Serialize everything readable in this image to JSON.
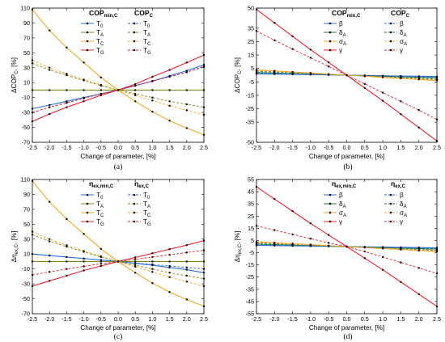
{
  "colors": {
    "blue": "#2a6fdb",
    "olive": "#7f8a1a",
    "orange": "#f5a623",
    "red": "#e8202a",
    "darkgreen": "#1c7a3a",
    "black": "#000000"
  },
  "chart_data": [
    {
      "panel": "(a)",
      "type": "line",
      "ylabel_main": "ΔCOP",
      "ylabel_sub": "C",
      "ylabel_unit": ", [%]",
      "xlabel": "Change of parameter, [%]",
      "xlim": [
        -2.5,
        2.5
      ],
      "ylim": [
        -70,
        110
      ],
      "xticks": [
        -2.5,
        -2.0,
        -1.5,
        -1.0,
        -0.5,
        0.0,
        0.5,
        1.0,
        1.5,
        2.0,
        2.5
      ],
      "yticks": [
        -70,
        -50,
        -30,
        -10,
        10,
        30,
        50,
        70,
        90,
        110
      ],
      "legend_headers": [
        {
          "main": "COP",
          "sub": "min,C"
        },
        {
          "main": "COP",
          "sub": "C"
        }
      ],
      "x": [
        -2.5,
        -2.0,
        -1.5,
        -1.0,
        -0.5,
        0.0,
        0.5,
        1.0,
        1.5,
        2.0,
        2.5
      ],
      "series": [
        {
          "name": "T",
          "sub": "0",
          "group": "min",
          "color": "blue",
          "dash": false,
          "values": [
            -25,
            -20,
            -15,
            -10,
            -5,
            0,
            6,
            12,
            19,
            26,
            34
          ]
        },
        {
          "name": "T",
          "sub": "A",
          "group": "min",
          "color": "olive",
          "dash": false,
          "values": [
            0,
            0,
            0,
            0,
            0,
            0,
            0,
            0,
            0,
            0,
            0
          ]
        },
        {
          "name": "T",
          "sub": "C",
          "group": "min",
          "color": "orange",
          "dash": false,
          "values": [
            108,
            80,
            57,
            37,
            17,
            0,
            -15,
            -29,
            -41,
            -51,
            -60
          ]
        },
        {
          "name": "T",
          "sub": "G",
          "group": "min",
          "color": "red",
          "dash": false,
          "values": [
            -42,
            -32,
            -23,
            -15,
            -7,
            0,
            8,
            18,
            27,
            37,
            47
          ]
        },
        {
          "name": "T",
          "sub": "0",
          "group": "c",
          "color": "blue",
          "dash": true,
          "values": [
            -30,
            -23,
            -17,
            -11,
            -5,
            0,
            6,
            12,
            18,
            24,
            31
          ]
        },
        {
          "name": "T",
          "sub": "A",
          "group": "c",
          "color": "olive",
          "dash": true,
          "values": [
            36,
            27,
            20,
            13,
            6,
            0,
            -5,
            -10,
            -15,
            -19,
            -23
          ]
        },
        {
          "name": "T",
          "sub": "C",
          "group": "c",
          "color": "orange",
          "dash": true,
          "values": [
            40,
            30,
            22,
            14,
            7,
            0,
            -7,
            -14,
            -21,
            -27,
            -33
          ]
        },
        {
          "name": "T",
          "sub": "G",
          "group": "c",
          "color": "red",
          "dash": true,
          "values": [
            -30,
            -23,
            -17,
            -11,
            -5,
            0,
            6,
            12,
            18,
            24,
            32
          ]
        }
      ]
    },
    {
      "panel": "(b)",
      "type": "line",
      "ylabel_main": "ΔCOP",
      "ylabel_sub": "C",
      "ylabel_unit": ", [%]",
      "xlabel": "Change of parameter, [%]",
      "xlim": [
        -2.5,
        2.5
      ],
      "ylim": [
        -50,
        50
      ],
      "xticks": [
        -2.5,
        -2.0,
        -1.5,
        -1.0,
        -0.5,
        0.0,
        0.5,
        1.0,
        1.5,
        2.0,
        2.5
      ],
      "yticks": [
        -50,
        -35,
        -25,
        -15,
        -5,
        5,
        15,
        25,
        35,
        50
      ],
      "legend_headers": [
        {
          "main": "COP",
          "sub": "min,C"
        },
        {
          "main": "COP",
          "sub": "C"
        }
      ],
      "x": [
        -2.5,
        -2.0,
        -1.5,
        -1.0,
        -0.5,
        0.0,
        0.5,
        1.0,
        1.5,
        2.0,
        2.5
      ],
      "series": [
        {
          "name": "β",
          "sub": "",
          "group": "min",
          "color": "blue",
          "dash": false,
          "values": [
            1,
            0.8,
            0.6,
            0.4,
            0.2,
            0,
            -0.2,
            -0.4,
            -0.6,
            -0.8,
            -1
          ]
        },
        {
          "name": "δ",
          "sub": "A",
          "group": "min",
          "color": "darkgreen",
          "dash": false,
          "values": [
            2,
            1.6,
            1.2,
            0.8,
            0.4,
            0,
            -0.4,
            -0.8,
            -1.2,
            -1.6,
            -2
          ]
        },
        {
          "name": "σ",
          "sub": "A",
          "group": "min",
          "color": "orange",
          "dash": false,
          "values": [
            4,
            3.2,
            2.4,
            1.6,
            0.8,
            0,
            -0.8,
            -1.6,
            -2.4,
            -3.2,
            -4
          ]
        },
        {
          "name": "γ",
          "sub": "",
          "group": "min",
          "color": "red",
          "dash": false,
          "values": [
            49,
            39,
            29,
            19,
            9.5,
            0,
            -9.5,
            -19,
            -29,
            -39,
            -49
          ]
        },
        {
          "name": "β",
          "sub": "",
          "group": "c",
          "color": "blue",
          "dash": true,
          "values": [
            1.5,
            1.2,
            0.9,
            0.6,
            0.3,
            0,
            -0.3,
            -0.6,
            -0.9,
            -1.2,
            -1.5
          ]
        },
        {
          "name": "δ",
          "sub": "A",
          "group": "c",
          "color": "darkgreen",
          "dash": true,
          "values": [
            3,
            2.4,
            1.8,
            1.2,
            0.6,
            0,
            -0.6,
            -1.2,
            -1.8,
            -2.4,
            -3
          ]
        },
        {
          "name": "σ",
          "sub": "A",
          "group": "c",
          "color": "orange",
          "dash": true,
          "values": [
            3.5,
            2.8,
            2.1,
            1.4,
            0.7,
            0,
            -0.7,
            -1.4,
            -2.1,
            -2.8,
            -3.5
          ]
        },
        {
          "name": "γ",
          "sub": "",
          "group": "c",
          "color": "red",
          "dash": true,
          "values": [
            33,
            26,
            19.5,
            13,
            6.5,
            0,
            -6.5,
            -13,
            -19.5,
            -26,
            -33
          ]
        }
      ]
    },
    {
      "panel": "(c)",
      "type": "line",
      "ylabel_main": "Δη",
      "ylabel_sub": "ex,C",
      "ylabel_unit": ", [%]",
      "xlabel": "Change of parameter, [%]",
      "xlim": [
        -2.5,
        2.5
      ],
      "ylim": [
        -70,
        110
      ],
      "xticks": [
        -2.5,
        -2.0,
        -1.5,
        -1.0,
        -0.5,
        0.0,
        0.5,
        1.0,
        1.5,
        2.0,
        2.5
      ],
      "yticks": [
        -70,
        -50,
        -30,
        -10,
        10,
        30,
        50,
        70,
        90,
        110
      ],
      "legend_headers": [
        {
          "main": "η",
          "sub": "ex,min,C"
        },
        {
          "main": "η",
          "sub": "ex,C"
        }
      ],
      "x": [
        -2.5,
        -2.0,
        -1.5,
        -1.0,
        -0.5,
        0.0,
        0.5,
        1.0,
        1.5,
        2.0,
        2.5
      ],
      "series": [
        {
          "name": "T",
          "sub": "0",
          "group": "min",
          "color": "blue",
          "dash": false,
          "values": [
            10,
            8,
            6,
            4,
            2,
            0,
            -2.5,
            -5,
            -8,
            -11,
            -15
          ]
        },
        {
          "name": "T",
          "sub": "A",
          "group": "min",
          "color": "olive",
          "dash": false,
          "values": [
            0,
            0,
            0,
            0,
            0,
            0,
            0,
            0,
            0,
            0,
            0
          ]
        },
        {
          "name": "T",
          "sub": "C",
          "group": "min",
          "color": "orange",
          "dash": false,
          "values": [
            108,
            80,
            57,
            37,
            17,
            0,
            -15,
            -29,
            -41,
            -51,
            -60
          ]
        },
        {
          "name": "T",
          "sub": "G",
          "group": "min",
          "color": "red",
          "dash": false,
          "values": [
            -33,
            -26,
            -19,
            -12,
            -6,
            0,
            5.5,
            11,
            16.5,
            22,
            28
          ]
        },
        {
          "name": "T",
          "sub": "0",
          "group": "c",
          "color": "blue",
          "dash": true,
          "values": [
            10,
            8,
            6,
            4,
            2,
            0,
            -2,
            -4,
            -6,
            -8,
            -10
          ]
        },
        {
          "name": "T",
          "sub": "A",
          "group": "c",
          "color": "olive",
          "dash": true,
          "values": [
            36,
            27,
            20,
            13,
            6,
            0,
            -5,
            -10,
            -15,
            -19,
            -23
          ]
        },
        {
          "name": "T",
          "sub": "C",
          "group": "c",
          "color": "orange",
          "dash": true,
          "values": [
            40,
            30,
            22,
            14,
            7,
            0,
            -7,
            -14,
            -21,
            -27,
            -33
          ]
        },
        {
          "name": "T",
          "sub": "G",
          "group": "c",
          "color": "red",
          "dash": true,
          "values": [
            -18,
            -14,
            -10,
            -6.5,
            -3,
            0,
            3,
            6,
            9,
            12,
            15
          ]
        }
      ]
    },
    {
      "panel": "(d)",
      "type": "line",
      "ylabel_main": "Δη",
      "ylabel_sub": "ex,C",
      "ylabel_unit": ", [%]",
      "xlabel": "Change of parameter, [%]",
      "xlim": [
        -2.5,
        2.5
      ],
      "ylim": [
        -55,
        55
      ],
      "xticks": [
        -2.5,
        -2.0,
        -1.5,
        -1.0,
        -0.5,
        0.0,
        0.5,
        1.0,
        1.5,
        2.0,
        2.5
      ],
      "yticks": [
        -55,
        -45,
        -35,
        -25,
        -15,
        -5,
        5,
        15,
        25,
        35,
        45,
        55
      ],
      "legend_headers": [
        {
          "main": "η",
          "sub": "ex,min,C"
        },
        {
          "main": "η",
          "sub": "ex,C"
        }
      ],
      "x": [
        -2.5,
        -2.0,
        -1.5,
        -1.0,
        -0.5,
        0.0,
        0.5,
        1.0,
        1.5,
        2.0,
        2.5
      ],
      "series": [
        {
          "name": "β",
          "sub": "",
          "group": "min",
          "color": "blue",
          "dash": false,
          "values": [
            1,
            0.8,
            0.6,
            0.4,
            0.2,
            0,
            -0.2,
            -0.4,
            -0.6,
            -0.8,
            -1
          ]
        },
        {
          "name": "δ",
          "sub": "A",
          "group": "min",
          "color": "darkgreen",
          "dash": false,
          "values": [
            2,
            1.6,
            1.2,
            0.8,
            0.4,
            0,
            -0.4,
            -0.8,
            -1.2,
            -1.6,
            -2
          ]
        },
        {
          "name": "σ",
          "sub": "A",
          "group": "min",
          "color": "orange",
          "dash": false,
          "values": [
            4,
            3.2,
            2.4,
            1.6,
            0.8,
            0,
            -0.8,
            -1.6,
            -2.4,
            -3.2,
            -4
          ]
        },
        {
          "name": "γ",
          "sub": "",
          "group": "min",
          "color": "red",
          "dash": false,
          "values": [
            49,
            39,
            29,
            19,
            9.5,
            0,
            -9.5,
            -19,
            -29,
            -39,
            -49
          ]
        },
        {
          "name": "β",
          "sub": "",
          "group": "c",
          "color": "blue",
          "dash": true,
          "values": [
            1.5,
            1.2,
            0.9,
            0.6,
            0.3,
            0,
            -0.3,
            -0.6,
            -0.9,
            -1.2,
            -1.5
          ]
        },
        {
          "name": "δ",
          "sub": "A",
          "group": "c",
          "color": "darkgreen",
          "dash": true,
          "values": [
            3,
            2.4,
            1.8,
            1.2,
            0.6,
            0,
            -0.6,
            -1.2,
            -1.8,
            -2.4,
            -3
          ]
        },
        {
          "name": "σ",
          "sub": "A",
          "group": "c",
          "color": "orange",
          "dash": true,
          "values": [
            3.5,
            2.8,
            2.1,
            1.4,
            0.7,
            0,
            -0.7,
            -1.4,
            -2.1,
            -2.8,
            -3.5
          ]
        },
        {
          "name": "γ",
          "sub": "",
          "group": "c",
          "color": "red",
          "dash": true,
          "values": [
            17,
            13.5,
            10,
            6.5,
            3,
            0,
            -4,
            -8.5,
            -13,
            -17.5,
            -22
          ]
        }
      ]
    }
  ]
}
